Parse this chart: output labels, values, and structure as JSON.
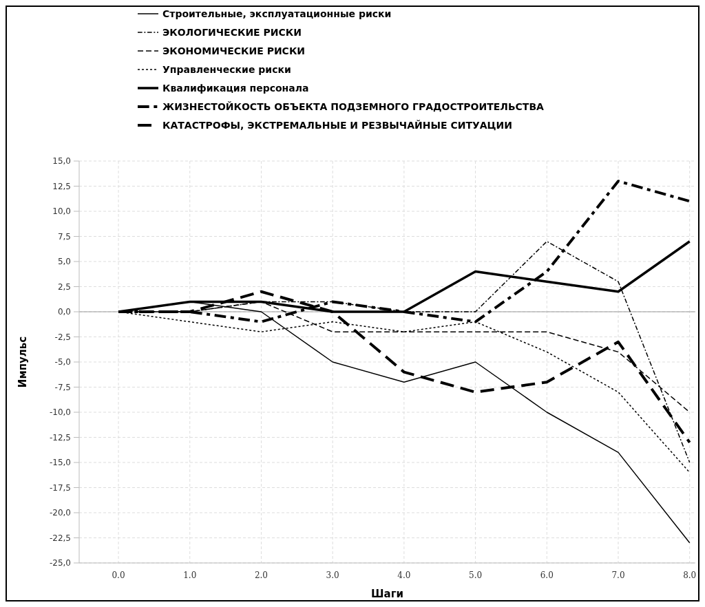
{
  "chart_data": {
    "type": "line",
    "xlabel": "Шаги",
    "ylabel": "Импульс",
    "x": [
      0,
      1,
      2,
      3,
      4,
      5,
      6,
      7,
      8
    ],
    "xlim": [
      -0.55,
      8.08
    ],
    "xticks": [
      {
        "value": 0,
        "label": "0.0"
      },
      {
        "value": 1,
        "label": "1.0"
      },
      {
        "value": 2,
        "label": "2.0"
      },
      {
        "value": 3,
        "label": "3.0"
      },
      {
        "value": 4,
        "label": "4.0"
      },
      {
        "value": 5,
        "label": "5.0"
      },
      {
        "value": 6,
        "label": "6.0"
      },
      {
        "value": 7,
        "label": "7.0"
      },
      {
        "value": 8,
        "label": "8.0"
      }
    ],
    "ylim": [
      -25,
      15
    ],
    "yticks": [
      {
        "value": -25,
        "label": "-25,0"
      },
      {
        "value": -22.5,
        "label": "-22,5"
      },
      {
        "value": -20,
        "label": "-20,0"
      },
      {
        "value": -17.5,
        "label": "-17,5"
      },
      {
        "value": -15,
        "label": "-15,0"
      },
      {
        "value": -12.5,
        "label": "-12,5"
      },
      {
        "value": -10,
        "label": "-10,0"
      },
      {
        "value": -7.5,
        "label": "-7,5"
      },
      {
        "value": -5,
        "label": "-5,0"
      },
      {
        "value": -2.5,
        "label": "-2,5"
      },
      {
        "value": 0,
        "label": "0,0"
      },
      {
        "value": 2.5,
        "label": "2,5"
      },
      {
        "value": 5,
        "label": "5,0"
      },
      {
        "value": 7.5,
        "label": "7,5"
      },
      {
        "value": 10,
        "label": "10,0"
      },
      {
        "value": 12.5,
        "label": "12,5"
      },
      {
        "value": 15,
        "label": "15,0"
      }
    ],
    "grid": true,
    "legend": "top",
    "marker": "none",
    "ref_lines": [
      {
        "axis": "y",
        "value": 0,
        "color": "#999999"
      }
    ],
    "series": [
      {
        "name": "Строительные, эксплуатационные риски",
        "color": "#000000",
        "line_style": "solid",
        "values": [
          0,
          1,
          0,
          -5,
          -7,
          -5,
          -10,
          -14,
          -23
        ]
      },
      {
        "name": "ЭКОЛОГИЧЕСКИЕ РИСКИ",
        "color": "#000000",
        "line_style": "dashdot",
        "values": [
          0,
          0,
          1,
          1,
          0,
          0,
          7,
          3,
          -15
        ]
      },
      {
        "name": "ЭКОНОМИЧЕСКИЕ РИСКИ",
        "color": "#000000",
        "line_style": "dashed",
        "values": [
          0,
          0,
          1,
          -2,
          -2,
          -2,
          -2,
          -4,
          -10
        ]
      },
      {
        "name": "Управленческие риски",
        "color": "#000000",
        "line_style": "dotted",
        "values": [
          0,
          -1,
          -2,
          -1,
          -2,
          -1,
          -4,
          -8,
          -16
        ]
      },
      {
        "name": "Квалификация персонала",
        "color": "#000000",
        "line_style": "solid",
        "values": [
          0,
          1,
          1,
          0,
          0,
          4,
          3,
          2,
          7
        ]
      },
      {
        "name": "ЖИЗНЕСТОЙКОСТЬ ОБЪЕКТА ПОДЗЕМНОГО ГРАДОСТРОИТЕЛЬСТВА",
        "color": "#000000",
        "line_style": "dashdot",
        "values": [
          0,
          0,
          -1,
          1,
          0,
          -1,
          4,
          13,
          11
        ]
      },
      {
        "name": "КАТАСТРОФЫ, ЭКСТРЕМАЛЬНЫЕ И РЕЗВЫЧАЙНЫЕ СИТУАЦИИ",
        "color": "#000000",
        "line_style": "dashed",
        "values": [
          0,
          0,
          2,
          0,
          -6,
          -8,
          -7,
          -3,
          -13
        ]
      }
    ]
  }
}
